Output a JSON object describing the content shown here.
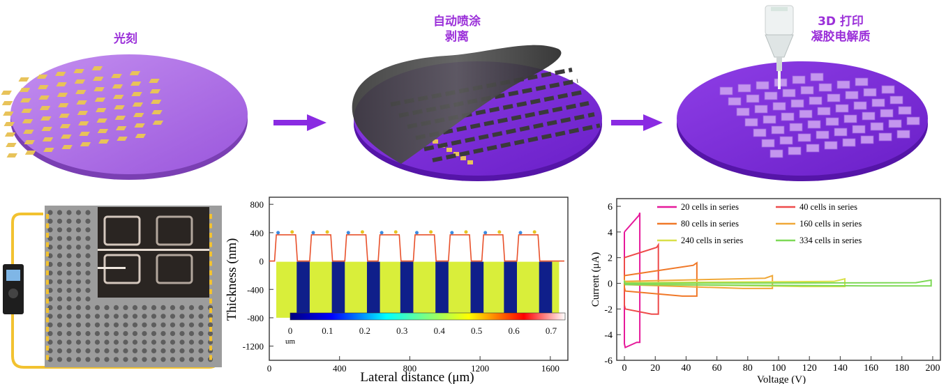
{
  "steps": {
    "s1": {
      "label": "光刻"
    },
    "s2": {
      "line1": "自动喷涂",
      "line2": "剥离"
    },
    "s3": {
      "line1": "3D 打印",
      "line2": "凝胶电解质"
    }
  },
  "colors": {
    "accent": "#9b30d9",
    "wafer_light": "#b67be4",
    "wafer_dark": "#7e2fd6",
    "gold": "#e8c35a",
    "arrow": "#8a2be2"
  },
  "thickness_chart": {
    "type": "line",
    "xlabel": "Lateral distance (μm)",
    "ylabel": "Thickness (nm)",
    "xlim": [
      0,
      1700
    ],
    "ylim": [
      -1400,
      900
    ],
    "x_ticks": [
      "0",
      "400",
      "800",
      "1200",
      "1600"
    ],
    "y_ticks": [
      "800",
      "400",
      "0",
      "-400",
      "-800",
      "-1200"
    ],
    "colorbar_ticks": [
      "0",
      "0.1",
      "0.2",
      "0.3",
      "0.4",
      "0.5",
      "0.6",
      "0.7"
    ],
    "colorbar_unit": "um",
    "step_height_nm": 370,
    "pulse_starts_um": [
      30,
      230,
      430,
      620,
      820,
      1020,
      1210,
      1410
    ],
    "pulse_width_um": 120
  },
  "chart_data": {
    "type": "line",
    "xlabel": "Voltage (V)",
    "ylabel": "Current (μA)",
    "xlim": [
      -5,
      205
    ],
    "ylim": [
      -6,
      6.6
    ],
    "x_ticks": [
      "0",
      "20",
      "40",
      "60",
      "80",
      "100",
      "120",
      "140",
      "160",
      "180",
      "200"
    ],
    "y_ticks": [
      "6",
      "4",
      "2",
      "0",
      "-2",
      "-4",
      "-6"
    ],
    "series": [
      {
        "name": "20 cells in series",
        "color": "#e6199a",
        "vmax": 10,
        "top_left": 4.0,
        "top_right": 5.5,
        "bot_left": -5.0,
        "bot_right": -4.6
      },
      {
        "name": "40 cells in series",
        "color": "#ee4a4a",
        "vmax": 22,
        "top_left": 2.0,
        "top_right": 3.0,
        "bot_left": -2.0,
        "bot_right": -2.4
      },
      {
        "name": "80 cells in series",
        "color": "#f07828",
        "vmax": 47,
        "top_left": 0.6,
        "top_right": 1.6,
        "bot_left": -0.6,
        "bot_right": -1.0
      },
      {
        "name": "160 cells in series",
        "color": "#f0a838",
        "vmax": 96,
        "top_left": 0.15,
        "top_right": 0.6,
        "bot_left": -0.1,
        "bot_right": -0.4
      },
      {
        "name": "240 cells in series",
        "color": "#d9e04a",
        "vmax": 143,
        "top_left": 0.05,
        "top_right": 0.35,
        "bot_left": -0.05,
        "bot_right": -0.25
      },
      {
        "name": "334 cells in series",
        "color": "#7ed957",
        "vmax": 199,
        "top_left": 0.0,
        "top_right": 0.25,
        "bot_left": -0.1,
        "bot_right": -0.2
      }
    ]
  }
}
